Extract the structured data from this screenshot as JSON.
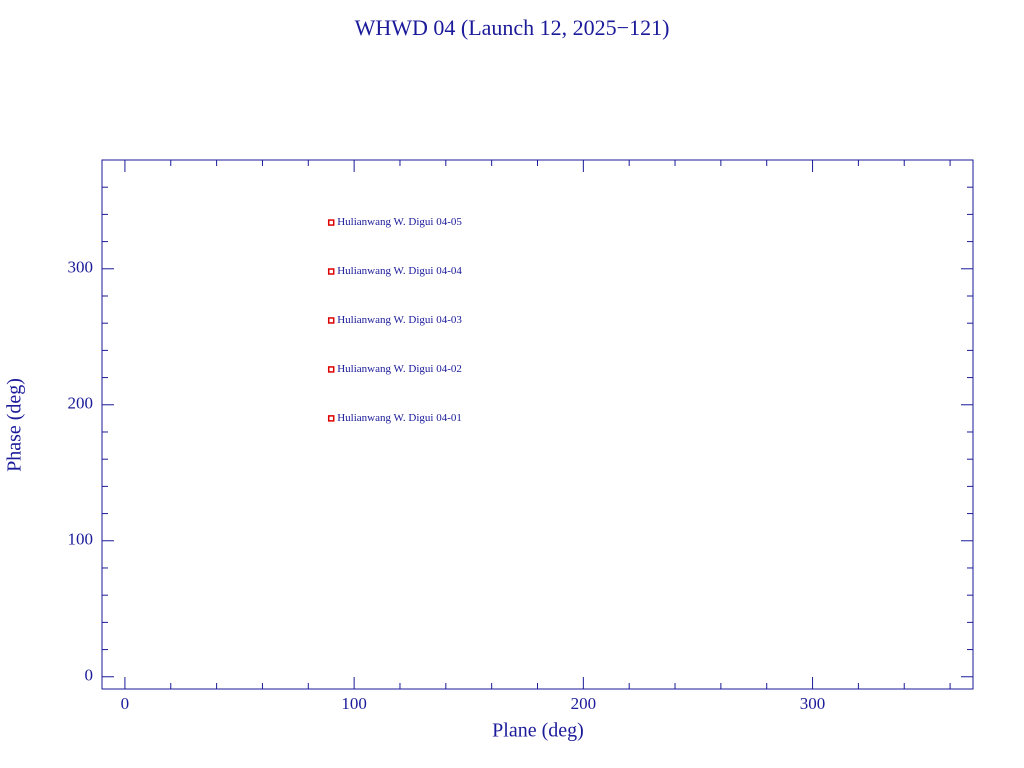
{
  "chart_data": {
    "type": "scatter",
    "title": "WHWD 04 (Launch 12, 2025−121)",
    "x_label": "Plane (deg)",
    "y_label": "Phase (deg)",
    "series": [
      {
        "name": "Hulianwang W. Digui 04",
        "color": "#dd0000",
        "x": [
          90,
          90,
          90,
          90,
          90
        ],
        "values": [
          190,
          226,
          262,
          298,
          334
        ],
        "point_labels": [
          "Hulianwang W. Digui 04-01",
          "Hulianwang W. Digui 04-02",
          "Hulianwang W. Digui 04-03",
          "Hulianwang W. Digui 04-04",
          "Hulianwang W. Digui 04-05"
        ]
      }
    ],
    "xlim": [
      -10,
      370
    ],
    "ylim": [
      -9,
      380
    ],
    "xticks": [
      0,
      100,
      200,
      300
    ],
    "yticks": [
      0,
      100,
      200,
      300
    ],
    "xminorticks": [
      20,
      40,
      60,
      80,
      120,
      140,
      160,
      180,
      220,
      240,
      260,
      280,
      320,
      340,
      360
    ],
    "yminorticks": [
      20,
      40,
      60,
      80,
      120,
      140,
      160,
      180,
      220,
      240,
      260,
      280,
      320,
      340,
      360
    ],
    "axis_color": "#1a1a9a"
  }
}
